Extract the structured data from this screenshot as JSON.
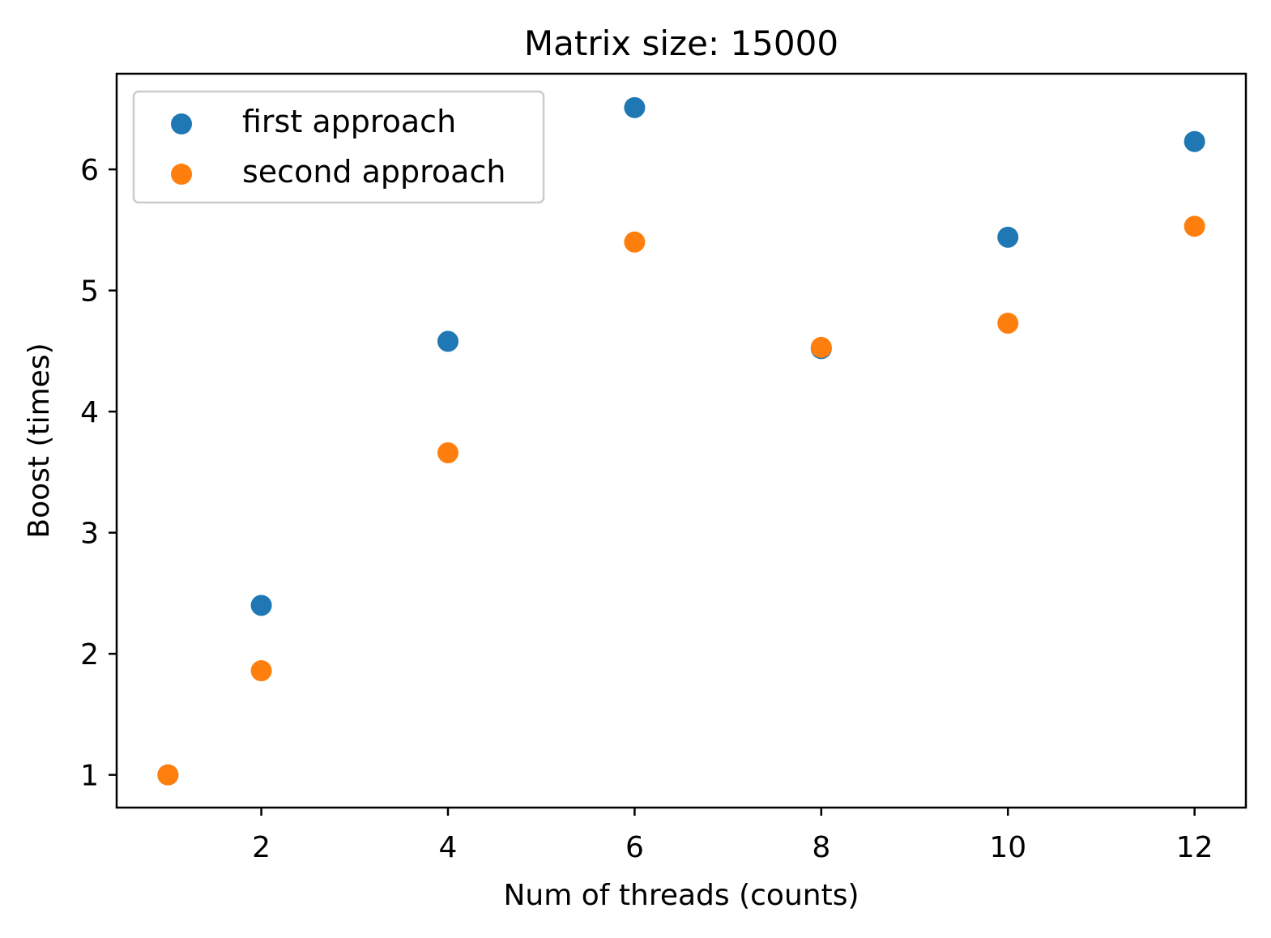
{
  "chart_data": {
    "type": "scatter",
    "title": "Matrix size: 15000",
    "xlabel": "Num of threads (counts)",
    "ylabel": "Boost (times)",
    "xlim": [
      0.45,
      12.55
    ],
    "ylim": [
      0.73,
      6.79
    ],
    "xticks": [
      2,
      4,
      6,
      8,
      10,
      12
    ],
    "yticks": [
      1,
      2,
      3,
      4,
      5,
      6
    ],
    "grid": false,
    "legend": "upper-left",
    "series": [
      {
        "name": "first approach",
        "color": "#1f77b4",
        "x": [
          1,
          2,
          4,
          6,
          8,
          10,
          12
        ],
        "y": [
          1.0,
          2.4,
          4.58,
          6.51,
          4.52,
          5.44,
          6.23
        ]
      },
      {
        "name": "second approach",
        "color": "#ff7f0e",
        "x": [
          1,
          2,
          4,
          6,
          8,
          10,
          12
        ],
        "y": [
          1.0,
          1.86,
          3.66,
          5.4,
          4.53,
          4.73,
          5.53
        ]
      }
    ]
  }
}
